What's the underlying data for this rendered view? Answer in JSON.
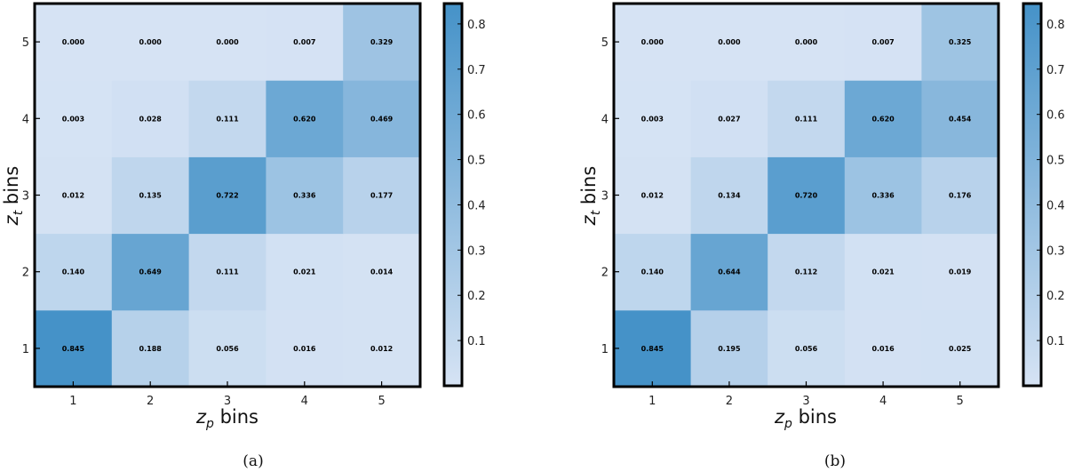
{
  "chart_data": [
    {
      "type": "heatmap",
      "caption": "(a)",
      "xlabel_var": "z",
      "xlabel_sub": "p",
      "xlabel_suffix": " bins",
      "ylabel_var": "z",
      "ylabel_sub": "t",
      "ylabel_suffix": " bins",
      "x_categories": [
        "1",
        "2",
        "3",
        "4",
        "5"
      ],
      "y_categories": [
        "1",
        "2",
        "3",
        "4",
        "5"
      ],
      "matrix": [
        [
          "0.845",
          "0.188",
          "0.056",
          "0.016",
          "0.012"
        ],
        [
          "0.140",
          "0.649",
          "0.111",
          "0.021",
          "0.014"
        ],
        [
          "0.012",
          "0.135",
          "0.722",
          "0.336",
          "0.177"
        ],
        [
          "0.003",
          "0.028",
          "0.111",
          "0.620",
          "0.469"
        ],
        [
          "0.000",
          "0.000",
          "0.000",
          "0.007",
          "0.329"
        ]
      ],
      "colorbar": {
        "range": [
          0.0,
          0.845
        ],
        "ticks": [
          "0.1",
          "0.2",
          "0.3",
          "0.4",
          "0.5",
          "0.6",
          "0.7",
          "0.8"
        ]
      },
      "colors": {
        "low": "#d6e3f4",
        "high": "#4592c8"
      }
    },
    {
      "type": "heatmap",
      "caption": "(b)",
      "xlabel_var": "z",
      "xlabel_sub": "p",
      "xlabel_suffix": " bins",
      "ylabel_var": "z",
      "ylabel_sub": "t",
      "ylabel_suffix": " bins",
      "x_categories": [
        "1",
        "2",
        "3",
        "4",
        "5"
      ],
      "y_categories": [
        "1",
        "2",
        "3",
        "4",
        "5"
      ],
      "matrix": [
        [
          "0.845",
          "0.195",
          "0.056",
          "0.016",
          "0.025"
        ],
        [
          "0.140",
          "0.644",
          "0.112",
          "0.021",
          "0.019"
        ],
        [
          "0.012",
          "0.134",
          "0.720",
          "0.336",
          "0.176"
        ],
        [
          "0.003",
          "0.027",
          "0.111",
          "0.620",
          "0.454"
        ],
        [
          "0.000",
          "0.000",
          "0.000",
          "0.007",
          "0.325"
        ]
      ],
      "colorbar": {
        "range": [
          0.0,
          0.845
        ],
        "ticks": [
          "0.1",
          "0.2",
          "0.3",
          "0.4",
          "0.5",
          "0.6",
          "0.7",
          "0.8"
        ]
      },
      "colors": {
        "low": "#d6e3f4",
        "high": "#4592c8"
      }
    }
  ]
}
